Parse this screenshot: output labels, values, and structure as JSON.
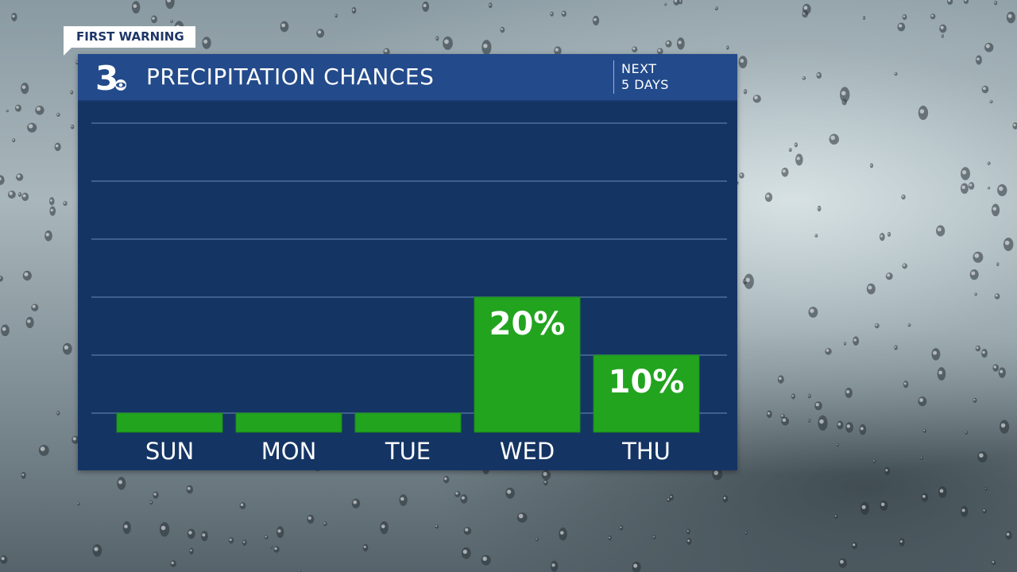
{
  "tag": {
    "label": "FIRST WARNING"
  },
  "header": {
    "logo_text": "3",
    "title": "PRECIPITATION CHANCES",
    "subtitle_line1": "NEXT",
    "subtitle_line2": "5 DAYS"
  },
  "colors": {
    "panel": "#143463",
    "header": "#234a8a",
    "bar": "#22a41f",
    "bar_edge": "#1c8a1a",
    "gridline": "#3f5f8f",
    "text": "#ffffff"
  },
  "chart_data": {
    "type": "bar",
    "categories": [
      "SUN",
      "MON",
      "TUE",
      "WED",
      "THU"
    ],
    "values": [
      0,
      0,
      0,
      20,
      10
    ],
    "data_labels": [
      "",
      "",
      "",
      "20%",
      "10%"
    ],
    "ylim": [
      0,
      100
    ],
    "grid": true,
    "title": "PRECIPITATION CHANCES",
    "xlabel": "",
    "ylabel": ""
  }
}
